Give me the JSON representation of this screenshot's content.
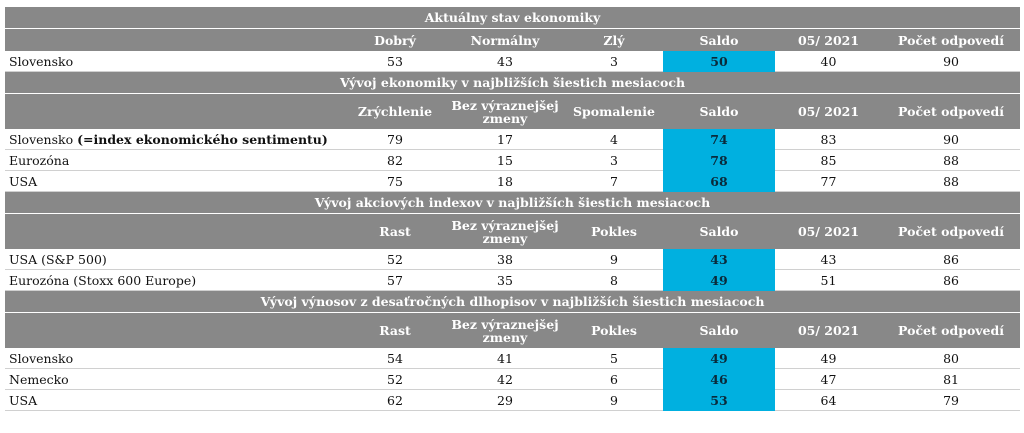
{
  "sections": [
    {
      "title": "Aktuálny stav ekonomiky",
      "headers": [
        "Dobrý",
        "Normálny",
        "Zlý",
        "Saldo",
        "05/ 2021",
        "Počet odpovedí"
      ],
      "rows": [
        {
          "label": "Slovensko",
          "label_bold": "",
          "values": [
            "53",
            "43",
            "3",
            "50",
            "40",
            "90"
          ]
        }
      ]
    },
    {
      "title": "Vývoj ekonomiky v najbližších šiestich mesiacoch",
      "headers": [
        "Zrýchlenie",
        "Bez výraznejšej zmeny",
        "Spomalenie",
        "Saldo",
        "05/ 2021",
        "Počet odpovedí"
      ],
      "rows": [
        {
          "label": "Slovensko ",
          "label_bold": "(=index ekonomického sentimentu)",
          "values": [
            "79",
            "17",
            "4",
            "74",
            "83",
            "90"
          ]
        },
        {
          "label": "Eurozóna",
          "label_bold": "",
          "values": [
            "82",
            "15",
            "3",
            "78",
            "85",
            "88"
          ]
        },
        {
          "label": "USA",
          "label_bold": "",
          "values": [
            "75",
            "18",
            "7",
            "68",
            "77",
            "88"
          ]
        }
      ]
    },
    {
      "title": "Vývoj akciových indexov v najbližších šiestich mesiacoch",
      "headers": [
        "Rast",
        "Bez výraznejšej zmeny",
        "Pokles",
        "Saldo",
        "05/ 2021",
        "Počet odpovedí"
      ],
      "rows": [
        {
          "label": "USA (S&P 500)",
          "label_bold": "",
          "values": [
            "52",
            "38",
            "9",
            "43",
            "43",
            "86"
          ]
        },
        {
          "label": "Eurozóna (Stoxx 600 Europe)",
          "label_bold": "",
          "values": [
            "57",
            "35",
            "8",
            "49",
            "51",
            "86"
          ]
        }
      ]
    },
    {
      "title": "Vývoj výnosov z desaťročných dlhopisov v najbližších šiestich mesiacoch",
      "headers": [
        "Rast",
        "Bez výraznejšej zmeny",
        "Pokles",
        "Saldo",
        "05/ 2021",
        "Počet odpovedí"
      ],
      "rows": [
        {
          "label": "Slovensko",
          "label_bold": "",
          "values": [
            "54",
            "41",
            "5",
            "49",
            "49",
            "80"
          ]
        },
        {
          "label": "Nemecko",
          "label_bold": "",
          "values": [
            "52",
            "42",
            "6",
            "46",
            "47",
            "81"
          ]
        },
        {
          "label": "USA",
          "label_bold": "",
          "values": [
            "62",
            "29",
            "9",
            "53",
            "64",
            "79"
          ]
        }
      ]
    }
  ],
  "colors": {
    "header_bg": "#888888",
    "saldo_bg": "#00b0e0"
  }
}
